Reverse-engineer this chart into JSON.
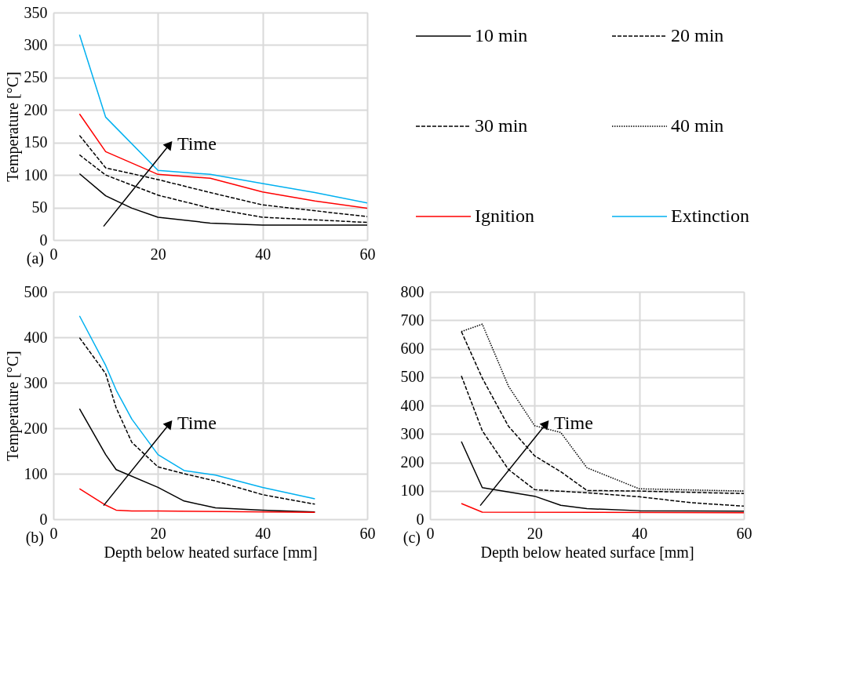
{
  "chart_data": [
    {
      "type": "line",
      "ylabel": "Temperature [°C]",
      "xlim": [
        0,
        60
      ],
      "xticks": [
        0,
        20,
        40,
        60
      ],
      "ylim": [
        0,
        350
      ],
      "yticks": [
        0,
        50,
        100,
        150,
        200,
        250,
        300,
        350
      ],
      "grid": true,
      "legend": "right",
      "annotations": [
        "Time",
        "(a)"
      ],
      "series": [
        {
          "name": "10 min",
          "color": "#000000",
          "line_style": "solid",
          "x": [
            5,
            10,
            15,
            20,
            30,
            40,
            60
          ],
          "values": [
            102,
            68,
            49,
            35,
            26,
            23,
            23
          ]
        },
        {
          "name": "20 min",
          "color": "#000000",
          "line_style": "dashed",
          "x": [
            5,
            10,
            20,
            30,
            40,
            60
          ],
          "values": [
            131,
            100,
            69,
            49,
            35,
            27
          ]
        },
        {
          "name": "30 min",
          "color": "#000000",
          "line_style": "dashed",
          "x": [
            5,
            10,
            20,
            30,
            40,
            60
          ],
          "values": [
            161,
            111,
            93,
            73,
            54,
            36
          ]
        },
        {
          "name": "Ignition",
          "color": "#ff0000",
          "line_style": "solid",
          "x": [
            5,
            10,
            20,
            30,
            40,
            50,
            60
          ],
          "values": [
            194,
            136,
            101,
            95,
            74,
            60,
            49
          ]
        },
        {
          "name": "Extinction",
          "color": "#00b0f0",
          "line_style": "solid",
          "x": [
            5,
            10,
            20,
            30,
            40,
            50,
            60
          ],
          "values": [
            316,
            189,
            107,
            101,
            87,
            73,
            57
          ]
        }
      ]
    },
    {
      "type": "line",
      "ylabel": "Temperature [°C]",
      "xlabel": "Depth below heated surface [mm]",
      "xlim": [
        0,
        60
      ],
      "xticks": [
        0,
        20,
        40,
        60
      ],
      "ylim": [
        0,
        500
      ],
      "yticks": [
        0,
        100,
        200,
        300,
        400,
        500
      ],
      "grid": true,
      "annotations": [
        "Time",
        "(b)"
      ],
      "series": [
        {
          "name": "10 min",
          "color": "#000000",
          "line_style": "solid",
          "x": [
            5,
            10,
            12,
            20,
            25,
            31,
            40,
            50
          ],
          "values": [
            243,
            142,
            109,
            70,
            40,
            25,
            20,
            16
          ]
        },
        {
          "name": "20 min",
          "color": "#000000",
          "line_style": "dashed",
          "x": [
            5,
            10,
            12,
            15,
            20,
            25,
            31,
            40,
            50
          ],
          "values": [
            399,
            320,
            245,
            169,
            115,
            100,
            84,
            54,
            33
          ]
        },
        {
          "name": "Ignition",
          "color": "#ff0000",
          "line_style": "solid",
          "x": [
            5,
            10,
            12,
            15,
            20,
            50
          ],
          "values": [
            67,
            31,
            20,
            18,
            18,
            15
          ]
        },
        {
          "name": "Extinction",
          "color": "#00b0f0",
          "line_style": "solid",
          "x": [
            5,
            10,
            12,
            15,
            20,
            25,
            31,
            40,
            50
          ],
          "values": [
            447,
            338,
            284,
            220,
            142,
            107,
            97,
            70,
            45
          ]
        }
      ]
    },
    {
      "type": "line",
      "xlabel": "Depth below heated surface [mm]",
      "xlim": [
        0,
        60
      ],
      "xticks": [
        0,
        20,
        40,
        60
      ],
      "ylim": [
        0,
        800
      ],
      "yticks": [
        0,
        100,
        200,
        300,
        400,
        500,
        600,
        700,
        800
      ],
      "grid": true,
      "annotations": [
        "Time",
        "(c)"
      ],
      "series": [
        {
          "name": "10 min",
          "color": "#000000",
          "line_style": "solid",
          "x": [
            6,
            10,
            20,
            25,
            30,
            40,
            60
          ],
          "values": [
            273,
            111,
            81,
            49,
            37,
            30,
            28
          ]
        },
        {
          "name": "20 min",
          "color": "#000000",
          "line_style": "dashed",
          "x": [
            6,
            10,
            15,
            20,
            30,
            40,
            50,
            60
          ],
          "values": [
            504,
            311,
            175,
            104,
            93,
            79,
            58,
            46
          ]
        },
        {
          "name": "30 min",
          "color": "#000000",
          "line_style": "dashed",
          "x": [
            6,
            10,
            15,
            20,
            25,
            30,
            40,
            60
          ],
          "values": [
            660,
            496,
            327,
            223,
            167,
            101,
            99,
            90
          ]
        },
        {
          "name": "40 min",
          "color": "#000000",
          "line_style": "dotted",
          "x": [
            6,
            10,
            15,
            20,
            25,
            30,
            40,
            60
          ],
          "values": [
            660,
            686,
            468,
            329,
            305,
            181,
            107,
            99
          ]
        },
        {
          "name": "Ignition",
          "color": "#ff0000",
          "line_style": "solid",
          "x": [
            6,
            10,
            60
          ],
          "values": [
            55,
            25,
            23
          ]
        }
      ]
    }
  ]
}
